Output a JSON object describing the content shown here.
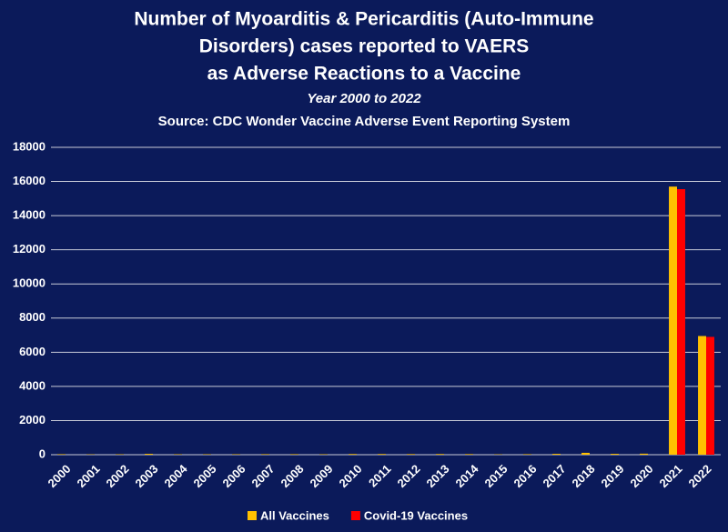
{
  "chart_data": {
    "type": "bar",
    "title": [
      "Number of Myoarditis & Pericarditis (Auto-Immune",
      "Disorders) cases reported to VAERS",
      "as Adverse Reactions to a Vaccine"
    ],
    "subtitle": "Year 2000 to 2022",
    "source": "Source: CDC Wonder Vaccine Adverse Event Reporting System",
    "categories": [
      "2000",
      "2001",
      "2002",
      "2003",
      "2004",
      "2005",
      "2006",
      "2007",
      "2008",
      "2009",
      "2010",
      "2011",
      "2012",
      "2013",
      "2014",
      "2015",
      "2016",
      "2017",
      "2018",
      "2019",
      "2020",
      "2021",
      "2022"
    ],
    "series": [
      {
        "name": "All Vaccines",
        "color": "#FFC000",
        "values": [
          30,
          20,
          25,
          50,
          25,
          25,
          25,
          30,
          30,
          25,
          40,
          40,
          35,
          40,
          35,
          20,
          30,
          50,
          110,
          50,
          60,
          15700,
          6950
        ]
      },
      {
        "name": "Covid-19 Vaccines",
        "color": "#FF0000",
        "values": [
          0,
          0,
          0,
          0,
          0,
          0,
          0,
          0,
          0,
          0,
          0,
          0,
          0,
          0,
          0,
          0,
          0,
          0,
          0,
          0,
          0,
          15550,
          6900
        ]
      }
    ],
    "ylim": [
      0,
      18000
    ],
    "yticks": [
      0,
      2000,
      4000,
      6000,
      8000,
      10000,
      12000,
      14000,
      16000,
      18000
    ],
    "grid": true
  }
}
